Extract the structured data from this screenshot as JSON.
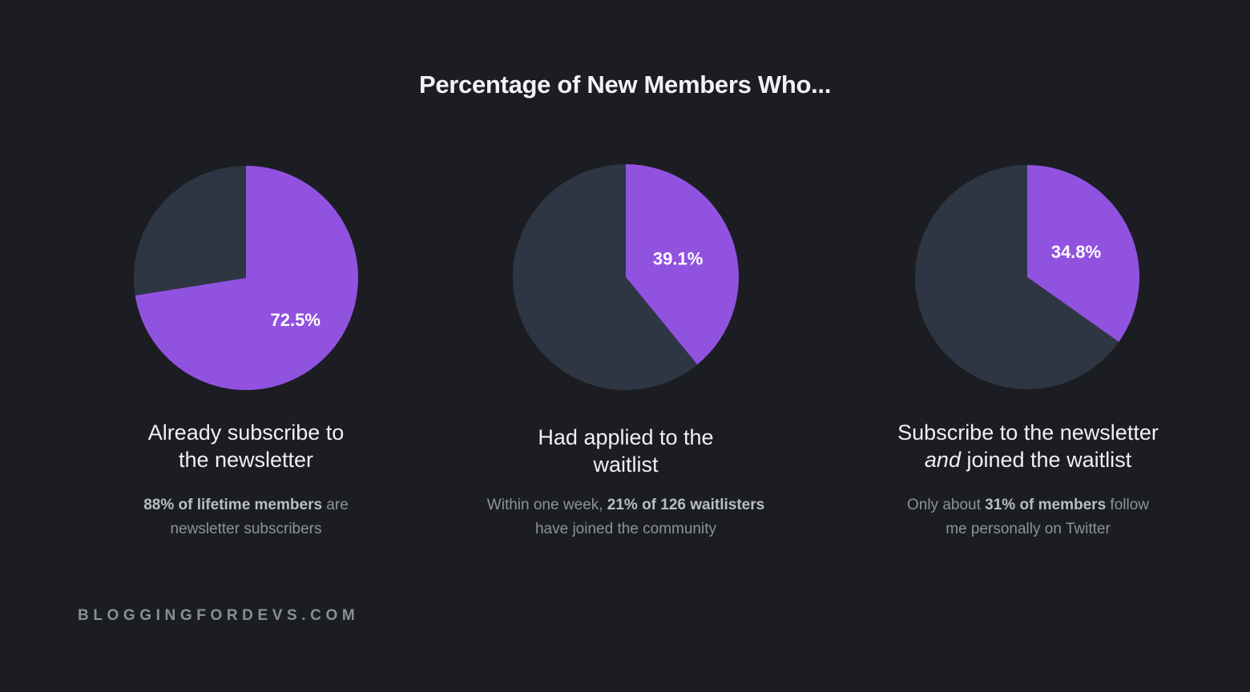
{
  "title": "Percentage of New Members Who...",
  "footer": "BLOGGINGFORDEVS.COM",
  "colors": {
    "background": "#1b1d22",
    "highlight": "#9152e0",
    "remainder": "#2e3643"
  },
  "chart_data": [
    {
      "type": "pie",
      "title": "Already subscribe to the newsletter",
      "slices": [
        {
          "label": "72.5%",
          "value": 72.5,
          "color": "#9152e0"
        },
        {
          "label": "",
          "value": 27.5,
          "color": "#2e3643"
        }
      ],
      "caption_lines": [
        "Already subscribe to",
        "the newsletter"
      ],
      "note": {
        "line1_bold": "88% of lifetime members",
        "line1_rest": " are",
        "line2": "newsletter subscribers"
      }
    },
    {
      "type": "pie",
      "title": "Had applied to the waitlist",
      "slices": [
        {
          "label": "39.1%",
          "value": 39.1,
          "color": "#9152e0"
        },
        {
          "label": "",
          "value": 60.9,
          "color": "#2e3643"
        }
      ],
      "caption_lines": [
        "Had applied to the",
        "waitlist"
      ],
      "note": {
        "line1_pre": "Within one week, ",
        "line1_bold": "21% of 126 waitlisters",
        "line2": "have joined the community"
      }
    },
    {
      "type": "pie",
      "title": "Subscribe to the newsletter and joined the waitlist",
      "slices": [
        {
          "label": "34.8%",
          "value": 34.8,
          "color": "#9152e0"
        },
        {
          "label": "",
          "value": 65.2,
          "color": "#2e3643"
        }
      ],
      "caption_lines": [
        "Subscribe to the newsletter"
      ],
      "caption_line2_italic": "and",
      "caption_line2_rest": " joined the waitlist",
      "note": {
        "line1_pre": "Only about ",
        "line1_bold": "31% of members",
        "line1_rest": " follow",
        "line2": "me personally on Twitter"
      }
    }
  ]
}
